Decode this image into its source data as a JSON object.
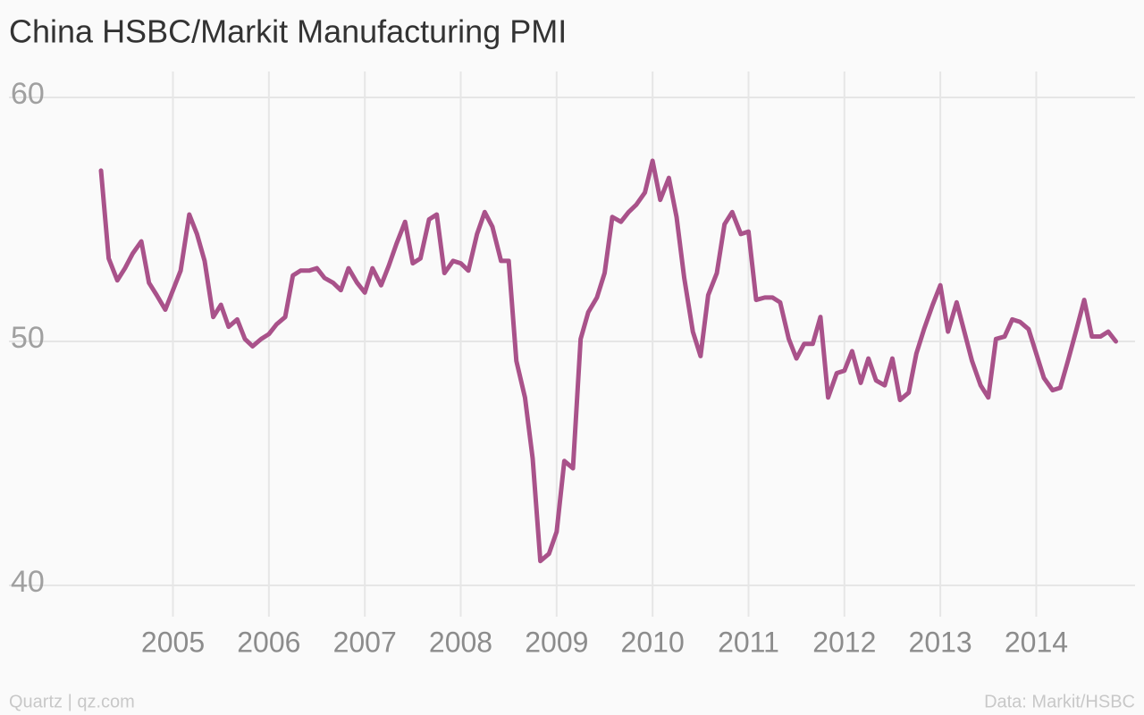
{
  "chart_data": {
    "type": "line",
    "title": "China HSBC/Markit Manufacturing PMI",
    "credit": "Quartz | qz.com",
    "source": "Data: Markit/HSBC",
    "color": "#a9528a",
    "grid": true,
    "xlim": [
      2003.29,
      2015.03
    ],
    "ylim": [
      38.72,
      61.06
    ],
    "xticks": [
      2005,
      2006,
      2007,
      2008,
      2009,
      2010,
      2011,
      2012,
      2013,
      2014
    ],
    "yticks": [
      40,
      50,
      60
    ],
    "x": [
      2004.25,
      2004.33,
      2004.42,
      2004.5,
      2004.58,
      2004.67,
      2004.75,
      2004.83,
      2004.92,
      2005.0,
      2005.08,
      2005.17,
      2005.25,
      2005.33,
      2005.42,
      2005.5,
      2005.58,
      2005.67,
      2005.75,
      2005.83,
      2005.92,
      2006.0,
      2006.08,
      2006.17,
      2006.25,
      2006.33,
      2006.42,
      2006.5,
      2006.58,
      2006.67,
      2006.75,
      2006.83,
      2006.92,
      2007.0,
      2007.08,
      2007.17,
      2007.25,
      2007.33,
      2007.42,
      2007.5,
      2007.58,
      2007.67,
      2007.75,
      2007.83,
      2007.92,
      2008.0,
      2008.08,
      2008.17,
      2008.25,
      2008.33,
      2008.42,
      2008.5,
      2008.58,
      2008.67,
      2008.75,
      2008.83,
      2008.92,
      2009.0,
      2009.08,
      2009.17,
      2009.25,
      2009.33,
      2009.42,
      2009.5,
      2009.58,
      2009.67,
      2009.75,
      2009.83,
      2009.92,
      2010.0,
      2010.08,
      2010.17,
      2010.25,
      2010.33,
      2010.42,
      2010.5,
      2010.58,
      2010.67,
      2010.75,
      2010.83,
      2010.92,
      2011.0,
      2011.08,
      2011.17,
      2011.25,
      2011.33,
      2011.42,
      2011.5,
      2011.58,
      2011.67,
      2011.75,
      2011.83,
      2011.92,
      2012.0,
      2012.08,
      2012.17,
      2012.25,
      2012.33,
      2012.42,
      2012.5,
      2012.58,
      2012.67,
      2012.75,
      2012.83,
      2012.92,
      2013.0,
      2013.08,
      2013.17,
      2013.25,
      2013.33,
      2013.42,
      2013.5,
      2013.58,
      2013.67,
      2013.75,
      2013.83,
      2013.92,
      2014.0,
      2014.08,
      2014.17,
      2014.25,
      2014.33,
      2014.42,
      2014.5,
      2014.58,
      2014.67,
      2014.75,
      2014.83
    ],
    "values": [
      57.0,
      53.4,
      52.5,
      53.0,
      53.6,
      54.1,
      52.4,
      51.9,
      51.3,
      52.1,
      52.9,
      55.2,
      54.4,
      53.3,
      51.0,
      51.5,
      50.6,
      50.9,
      50.1,
      49.8,
      50.1,
      50.3,
      50.7,
      51.0,
      52.7,
      52.9,
      52.9,
      53.0,
      52.6,
      52.4,
      52.1,
      53.0,
      52.4,
      52.0,
      53.0,
      52.3,
      53.1,
      54.0,
      54.9,
      53.2,
      53.4,
      55.0,
      55.2,
      52.8,
      53.3,
      53.2,
      52.9,
      54.4,
      55.3,
      54.7,
      53.3,
      53.3,
      49.2,
      47.7,
      45.2,
      41.0,
      41.3,
      42.2,
      45.1,
      44.8,
      50.1,
      51.2,
      51.8,
      52.8,
      55.1,
      54.9,
      55.3,
      55.6,
      56.1,
      57.4,
      55.8,
      56.7,
      55.1,
      52.6,
      50.4,
      49.4,
      51.9,
      52.8,
      54.8,
      55.3,
      54.4,
      54.5,
      51.7,
      51.8,
      51.8,
      51.6,
      50.1,
      49.3,
      49.9,
      49.9,
      51.0,
      47.7,
      48.7,
      48.8,
      49.6,
      48.3,
      49.3,
      48.4,
      48.2,
      49.3,
      47.6,
      47.9,
      49.5,
      50.5,
      51.5,
      52.3,
      50.4,
      51.6,
      50.4,
      49.2,
      48.2,
      47.7,
      50.1,
      50.2,
      50.9,
      50.8,
      50.5,
      49.5,
      48.5,
      48.0,
      48.1,
      49.2,
      50.5,
      51.7,
      50.2,
      50.2,
      50.4,
      50.0
    ]
  }
}
